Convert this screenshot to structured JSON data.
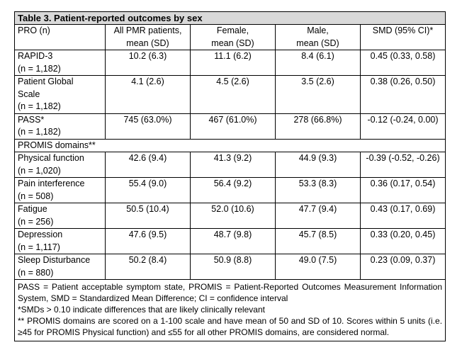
{
  "table": {
    "title": "Table 3. Patient-reported outcomes by sex",
    "header": [
      [
        "PRO (n)"
      ],
      [
        "All PMR patients,",
        "mean (SD)"
      ],
      [
        "Female,",
        "mean (SD)"
      ],
      [
        "Male,",
        "mean (SD)"
      ],
      [
        "SMD (95% CI)*"
      ]
    ],
    "rows": [
      [
        [
          "RAPID-3",
          "(n = 1,182)"
        ],
        "10.2 (6.3)",
        "11.1 (6.2)",
        "8.4 (6.1)",
        "0.45 (0.33, 0.58)"
      ],
      [
        [
          "Patient Global",
          "Scale",
          "(n = 1,182)"
        ],
        "4.1 (2.6)",
        "4.5 (2.6)",
        "3.5 (2.6)",
        "0.38 (0.26, 0.50)"
      ],
      [
        [
          "PASS*",
          "(n = 1,182)"
        ],
        "745 (63.0%)",
        "467 (61.0%)",
        "278 (66.8%)",
        "-0.12 (-0.24, 0.00)"
      ],
      [
        [
          "PROMIS domains**"
        ]
      ],
      [
        [
          "Physical function",
          "(n = 1,020)"
        ],
        "42.6 (9.4)",
        "41.3 (9.2)",
        "44.9 (9.3)",
        "-0.39 (-0.52, -0.26)"
      ],
      [
        [
          "Pain interference",
          "(n = 508)"
        ],
        "55.4 (9.0)",
        "56.4 (9.2)",
        "53.3 (8.3)",
        "0.36 (0.17, 0.54)"
      ],
      [
        [
          "Fatigue",
          "(n = 256)"
        ],
        "50.5 (10.4)",
        "52.0 (10.6)",
        "47.7 (9.4)",
        "0.43 (0.17, 0.69)"
      ],
      [
        [
          "Depression",
          "(n = 1,117)"
        ],
        "47.6 (9.5)",
        "48.7 (9.8)",
        "45.7 (8.5)",
        "0.33 (0.20, 0.45)"
      ],
      [
        [
          "Sleep Disturbance",
          "(n = 880)"
        ],
        "50.2 (8.4)",
        "50.9 (8.8)",
        "49.0 (7.5)",
        "0.23 (0.09, 0.37)"
      ]
    ],
    "notes": [
      "PASS = Patient acceptable symptom state, PROMIS = Patient-Reported Outcomes Measurement Information System, SMD = Standardized Mean Difference; CI = confidence interval",
      "*SMDs > 0.10 indicate differences that are likely clinically relevant",
      "** PROMIS domains are scored on a 1-100 scale and have mean of 50 and SD of 10. Scores within 5 units (i.e. ≥45 for PROMIS Physical function) and ≤55 for all other PROMIS domains, are considered normal."
    ]
  }
}
